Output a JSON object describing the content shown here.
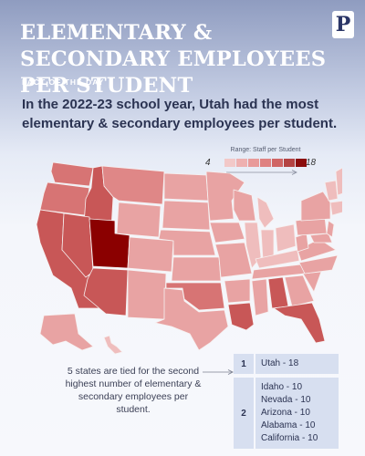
{
  "header": {
    "title": "Elementary & Secondary Employees Per Student",
    "logo_letter": "P",
    "kicker": "Fact of the Day"
  },
  "headline": "In the 2022-23 school year, Utah had the most elementary & secondary employees per student.",
  "legend": {
    "title": "Range: Staff per Student",
    "min": "4",
    "max": "18",
    "colors": [
      "#f2c8c8",
      "#eeb0b0",
      "#e89a9a",
      "#df8181",
      "#d06565",
      "#b44343",
      "#8b0d0d"
    ]
  },
  "map": {
    "colors": {
      "utah": "#8b0000",
      "tier2": "#c85757",
      "mid": "#df8787",
      "base": "#e8a3a3",
      "light": "#efbdbd",
      "dark": "#d77474"
    }
  },
  "callout": "5 states are tied for the second highest number of elementary & secondary employees per student.",
  "ranks": [
    {
      "rank": "1",
      "states": [
        "Utah - 18"
      ]
    },
    {
      "rank": "2",
      "states": [
        "Idaho - 10",
        "Nevada - 10",
        "Arizona - 10",
        "Alabama - 10",
        "California - 10"
      ]
    }
  ]
}
